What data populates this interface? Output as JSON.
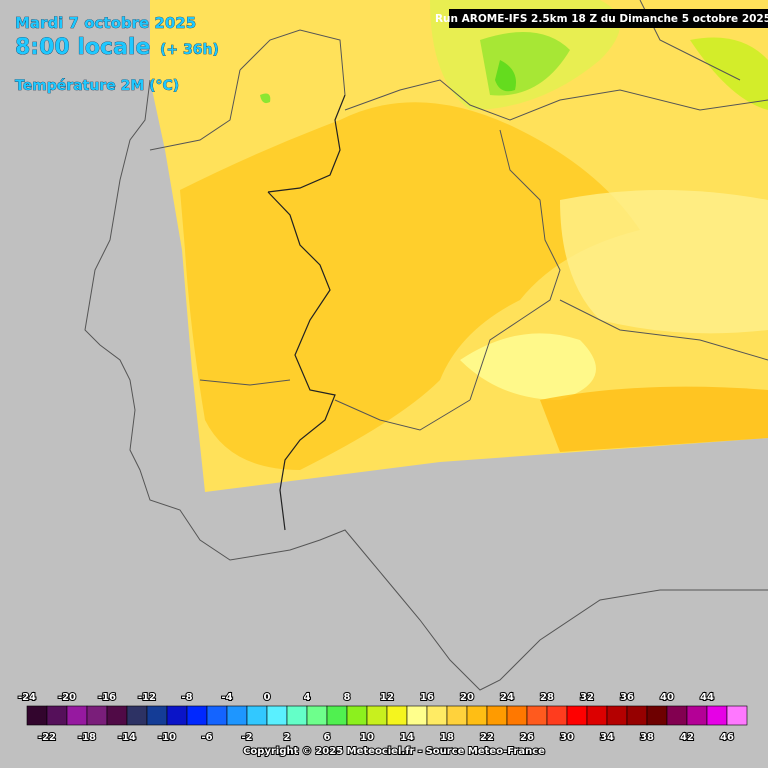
{
  "header": {
    "date": "Mardi 7 octobre 2025",
    "time": "8:00 locale",
    "lead": "(+ 36h)",
    "parameter": "Température 2M (°C)",
    "run": "Run AROME-IFS 2.5km 18 Z du Dimanche 5 octobre 2025"
  },
  "legend": {
    "labels_top": [
      -24,
      -20,
      -16,
      -12,
      -8,
      -4,
      0,
      4,
      8,
      12,
      16,
      20,
      24,
      28,
      32,
      36,
      40,
      44
    ],
    "labels_bottom": [
      -22,
      -18,
      -14,
      -10,
      -6,
      -2,
      2,
      6,
      10,
      14,
      18,
      22,
      26,
      30,
      34,
      38,
      42,
      46
    ],
    "colors": [
      "#32052d",
      "#55105a",
      "#9619a0",
      "#7a1e7a",
      "#500a46",
      "#2d3264",
      "#143c96",
      "#0a14c8",
      "#0028ff",
      "#1464ff",
      "#1e96ff",
      "#32c8ff",
      "#5af0ff",
      "#64ffc8",
      "#6eff8c",
      "#50f050",
      "#8cf01e",
      "#c8f01e",
      "#f5f51e",
      "#ffff8c",
      "#ffeb64",
      "#ffd23c",
      "#ffbe14",
      "#ff9b00",
      "#ff7800",
      "#ff5a1e",
      "#ff3c1e",
      "#ff0000",
      "#dc0000",
      "#b40000",
      "#960000",
      "#6e0000",
      "#820050",
      "#b40096",
      "#e600e6",
      "#ff78ff"
    ]
  },
  "footer": {
    "copyright": "Copyright © 2025 Meteociel.fr - Source Meteo-France"
  }
}
